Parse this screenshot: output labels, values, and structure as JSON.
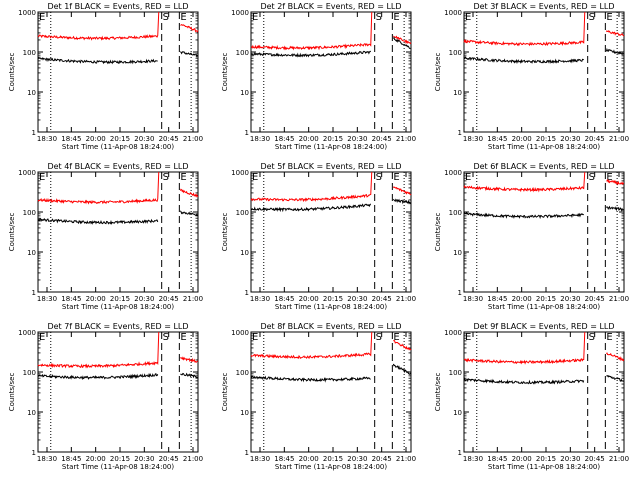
{
  "chart_data": [
    {
      "type": "line",
      "title": "Det 1f BLACK = Events, RED = LLD",
      "xlabel": "Start Time (11-Apr-08 18:24:00)",
      "ylabel": "Counts/sec",
      "yscale": "log",
      "ylim": [
        1,
        1000
      ],
      "xlim": [
        "18:24",
        "21:07"
      ],
      "x_ticks": [
        "18:30",
        "18:45",
        "20:00",
        "20:15",
        "20:30",
        "20:45",
        "21:00"
      ],
      "y_ticks": [
        "1",
        "10",
        "100",
        "1000"
      ],
      "markers": [
        {
          "label": "E",
          "time": "18:24",
          "style": "dotted"
        },
        {
          "label": "",
          "time": "18:37",
          "style": "dotted"
        },
        {
          "label": "S",
          "time": "20:30",
          "style": "dashed"
        },
        {
          "label": "E",
          "time": "20:48",
          "style": "dashed"
        },
        {
          "label": "",
          "time": "21:00",
          "style": "dotted"
        }
      ],
      "series": [
        {
          "color": "#ff0000",
          "segments": [
            {
              "start": "18:24",
              "end": "20:26",
              "start_value": 250,
              "end_value": 250,
              "peak": 1000
            },
            {
              "start": "20:49",
              "end": "21:07",
              "start_value": 500,
              "end_value": 330
            }
          ]
        },
        {
          "color": "#000000",
          "segments": [
            {
              "start": "18:24",
              "end": "20:26",
              "start_value": 68,
              "end_value": 60
            },
            {
              "start": "20:49",
              "end": "21:07",
              "start_value": 100,
              "end_value": 80
            }
          ]
        }
      ]
    },
    {
      "type": "line",
      "title": "Det 2f BLACK = Events, RED = LLD",
      "xlabel": "Start Time (11-Apr-08 18:24:00)",
      "ylabel": "Counts/sec",
      "yscale": "log",
      "ylim": [
        1,
        1000
      ],
      "xlim": [
        "18:24",
        "21:07"
      ],
      "x_ticks": [
        "18:30",
        "18:45",
        "20:00",
        "20:15",
        "20:30",
        "20:45",
        "21:00"
      ],
      "y_ticks": [
        "1",
        "10",
        "100",
        "1000"
      ],
      "markers": [
        {
          "label": "E",
          "time": "18:24",
          "style": "dotted"
        },
        {
          "label": "",
          "time": "18:37",
          "style": "dotted"
        },
        {
          "label": "S",
          "time": "20:30",
          "style": "dashed"
        },
        {
          "label": "E",
          "time": "20:48",
          "style": "dashed"
        },
        {
          "label": "",
          "time": "21:00",
          "style": "dotted"
        }
      ],
      "series": [
        {
          "color": "#ff0000",
          "segments": [
            {
              "start": "18:24",
              "end": "20:26",
              "start_value": 135,
              "end_value": 155,
              "peak": 1000
            },
            {
              "start": "20:49",
              "end": "21:07",
              "start_value": 250,
              "end_value": 160
            }
          ]
        },
        {
          "color": "#000000",
          "segments": [
            {
              "start": "18:24",
              "end": "20:26",
              "start_value": 90,
              "end_value": 100
            },
            {
              "start": "20:49",
              "end": "21:07",
              "start_value": 220,
              "end_value": 125
            }
          ]
        }
      ]
    },
    {
      "type": "line",
      "title": "Det 3f BLACK = Events, RED = LLD",
      "xlabel": "Start Time (11-Apr-08 18:24:00)",
      "ylabel": "Counts/sec",
      "yscale": "log",
      "ylim": [
        1,
        1000
      ],
      "xlim": [
        "18:24",
        "21:07"
      ],
      "x_ticks": [
        "18:30",
        "18:45",
        "20:00",
        "20:15",
        "20:30",
        "20:45",
        "21:00"
      ],
      "y_ticks": [
        "1",
        "10",
        "100",
        "1000"
      ],
      "markers": [
        {
          "label": "E",
          "time": "18:24",
          "style": "dotted"
        },
        {
          "label": "",
          "time": "18:37",
          "style": "dotted"
        },
        {
          "label": "S",
          "time": "20:30",
          "style": "dashed"
        },
        {
          "label": "E",
          "time": "20:48",
          "style": "dashed"
        },
        {
          "label": "",
          "time": "21:00",
          "style": "dotted"
        }
      ],
      "series": [
        {
          "color": "#ff0000",
          "segments": [
            {
              "start": "18:24",
              "end": "20:26",
              "start_value": 185,
              "end_value": 175,
              "peak": 1000
            },
            {
              "start": "20:49",
              "end": "21:07",
              "start_value": 330,
              "end_value": 260
            }
          ]
        },
        {
          "color": "#000000",
          "segments": [
            {
              "start": "18:24",
              "end": "20:26",
              "start_value": 70,
              "end_value": 62
            },
            {
              "start": "20:49",
              "end": "21:07",
              "start_value": 110,
              "end_value": 90
            }
          ]
        }
      ]
    },
    {
      "type": "line",
      "title": "Det 4f BLACK = Events, RED = LLD",
      "xlabel": "Start Time (11-Apr-08 18:24:00)",
      "ylabel": "Counts/sec",
      "yscale": "log",
      "ylim": [
        1,
        1000
      ],
      "xlim": [
        "18:24",
        "21:07"
      ],
      "x_ticks": [
        "18:30",
        "18:45",
        "20:00",
        "20:15",
        "20:30",
        "20:45",
        "21:00"
      ],
      "y_ticks": [
        "1",
        "10",
        "100",
        "1000"
      ],
      "markers": [
        {
          "label": "E",
          "time": "18:24",
          "style": "dotted"
        },
        {
          "label": "",
          "time": "18:37",
          "style": "dotted"
        },
        {
          "label": "S",
          "time": "20:30",
          "style": "dashed"
        },
        {
          "label": "E",
          "time": "20:48",
          "style": "dashed"
        },
        {
          "label": "",
          "time": "21:00",
          "style": "dotted"
        }
      ],
      "series": [
        {
          "color": "#ff0000",
          "segments": [
            {
              "start": "18:24",
              "end": "20:26",
              "start_value": 200,
              "end_value": 200,
              "peak": 1000
            },
            {
              "start": "20:49",
              "end": "21:07",
              "start_value": 350,
              "end_value": 250
            }
          ]
        },
        {
          "color": "#000000",
          "segments": [
            {
              "start": "18:24",
              "end": "20:26",
              "start_value": 65,
              "end_value": 60
            },
            {
              "start": "20:49",
              "end": "21:07",
              "start_value": 100,
              "end_value": 85
            }
          ]
        }
      ]
    },
    {
      "type": "line",
      "title": "Det 5f BLACK = Events, RED = LLD",
      "xlabel": "Start Time (11-Apr-08 18:24:00)",
      "ylabel": "Counts/sec",
      "yscale": "log",
      "ylim": [
        1,
        1000
      ],
      "xlim": [
        "18:24",
        "21:07"
      ],
      "x_ticks": [
        "18:30",
        "18:45",
        "20:00",
        "20:15",
        "20:30",
        "20:45",
        "21:00"
      ],
      "y_ticks": [
        "1",
        "10",
        "100",
        "1000"
      ],
      "markers": [
        {
          "label": "E",
          "time": "18:24",
          "style": "dotted"
        },
        {
          "label": "",
          "time": "18:37",
          "style": "dotted"
        },
        {
          "label": "S",
          "time": "20:30",
          "style": "dashed"
        },
        {
          "label": "E",
          "time": "20:48",
          "style": "dashed"
        },
        {
          "label": "",
          "time": "21:00",
          "style": "dotted"
        }
      ],
      "series": [
        {
          "color": "#ff0000",
          "segments": [
            {
              "start": "18:24",
              "end": "20:26",
              "start_value": 210,
              "end_value": 260,
              "peak": 1000
            },
            {
              "start": "20:49",
              "end": "21:07",
              "start_value": 420,
              "end_value": 280
            }
          ]
        },
        {
          "color": "#000000",
          "segments": [
            {
              "start": "18:24",
              "end": "20:26",
              "start_value": 120,
              "end_value": 150
            },
            {
              "start": "20:49",
              "end": "21:07",
              "start_value": 200,
              "end_value": 170
            }
          ]
        }
      ]
    },
    {
      "type": "line",
      "title": "Det 6f BLACK = Events, RED = LLD",
      "xlabel": "Start Time (11-Apr-08 18:24:00)",
      "ylabel": "Counts/sec",
      "yscale": "log",
      "ylim": [
        1,
        1000
      ],
      "xlim": [
        "18:24",
        "21:07"
      ],
      "x_ticks": [
        "18:30",
        "18:45",
        "20:00",
        "20:15",
        "20:30",
        "20:45",
        "21:00"
      ],
      "y_ticks": [
        "1",
        "10",
        "100",
        "1000"
      ],
      "markers": [
        {
          "label": "E",
          "time": "18:24",
          "style": "dotted"
        },
        {
          "label": "",
          "time": "18:37",
          "style": "dotted"
        },
        {
          "label": "S",
          "time": "20:30",
          "style": "dashed"
        },
        {
          "label": "E",
          "time": "20:48",
          "style": "dashed"
        },
        {
          "label": "",
          "time": "21:00",
          "style": "dotted"
        }
      ],
      "series": [
        {
          "color": "#ff0000",
          "segments": [
            {
              "start": "18:24",
              "end": "20:26",
              "start_value": 420,
              "end_value": 400,
              "peak": 1000
            },
            {
              "start": "20:49",
              "end": "21:07",
              "start_value": 600,
              "end_value": 500
            }
          ]
        },
        {
          "color": "#000000",
          "segments": [
            {
              "start": "18:24",
              "end": "20:26",
              "start_value": 90,
              "end_value": 85
            },
            {
              "start": "20:49",
              "end": "21:07",
              "start_value": 130,
              "end_value": 115
            }
          ]
        }
      ]
    },
    {
      "type": "line",
      "title": "Det 7f BLACK = Events, RED = LLD",
      "xlabel": "Start Time (11-Apr-08 18:24:00)",
      "ylabel": "Counts/sec",
      "yscale": "log",
      "ylim": [
        1,
        1000
      ],
      "xlim": [
        "18:24",
        "21:07"
      ],
      "x_ticks": [
        "18:30",
        "18:45",
        "20:00",
        "20:15",
        "20:30",
        "20:45",
        "21:00"
      ],
      "y_ticks": [
        "1",
        "10",
        "100",
        "1000"
      ],
      "markers": [
        {
          "label": "E",
          "time": "18:24",
          "style": "dotted"
        },
        {
          "label": "",
          "time": "18:37",
          "style": "dotted"
        },
        {
          "label": "S",
          "time": "20:30",
          "style": "dashed"
        },
        {
          "label": "E",
          "time": "20:48",
          "style": "dashed"
        },
        {
          "label": "",
          "time": "21:00",
          "style": "dotted"
        }
      ],
      "series": [
        {
          "color": "#ff0000",
          "segments": [
            {
              "start": "18:24",
              "end": "20:26",
              "start_value": 150,
              "end_value": 170,
              "peak": 1000
            },
            {
              "start": "20:49",
              "end": "21:07",
              "start_value": 230,
              "end_value": 180
            }
          ]
        },
        {
          "color": "#000000",
          "segments": [
            {
              "start": "18:24",
              "end": "20:26",
              "start_value": 80,
              "end_value": 85
            },
            {
              "start": "20:49",
              "end": "21:07",
              "start_value": 90,
              "end_value": 75
            }
          ]
        }
      ]
    },
    {
      "type": "line",
      "title": "Det 8f BLACK = Events, RED = LLD",
      "xlabel": "Start Time (11-Apr-08 18:24:00)",
      "ylabel": "Counts/sec",
      "yscale": "log",
      "ylim": [
        1,
        1000
      ],
      "xlim": [
        "18:24",
        "21:07"
      ],
      "x_ticks": [
        "18:30",
        "18:45",
        "20:00",
        "20:15",
        "20:30",
        "20:45",
        "21:00"
      ],
      "y_ticks": [
        "1",
        "10",
        "100",
        "1000"
      ],
      "markers": [
        {
          "label": "E",
          "time": "18:24",
          "style": "dotted"
        },
        {
          "label": "",
          "time": "18:37",
          "style": "dotted"
        },
        {
          "label": "S",
          "time": "20:30",
          "style": "dashed"
        },
        {
          "label": "E",
          "time": "20:48",
          "style": "dashed"
        },
        {
          "label": "",
          "time": "21:00",
          "style": "dotted"
        }
      ],
      "series": [
        {
          "color": "#ff0000",
          "segments": [
            {
              "start": "18:24",
              "end": "20:26",
              "start_value": 260,
              "end_value": 280,
              "peak": 1000
            },
            {
              "start": "20:49",
              "end": "21:07",
              "start_value": 600,
              "end_value": 350
            }
          ]
        },
        {
          "color": "#000000",
          "segments": [
            {
              "start": "18:24",
              "end": "20:26",
              "start_value": 75,
              "end_value": 70
            },
            {
              "start": "20:49",
              "end": "21:07",
              "start_value": 150,
              "end_value": 90
            }
          ]
        }
      ]
    },
    {
      "type": "line",
      "title": "Det 9f BLACK = Events, RED = LLD",
      "xlabel": "Start Time (11-Apr-08 18:24:00)",
      "ylabel": "Counts/sec",
      "yscale": "log",
      "ylim": [
        1,
        1000
      ],
      "xlim": [
        "18:24",
        "21:07"
      ],
      "x_ticks": [
        "18:30",
        "18:45",
        "20:00",
        "20:15",
        "20:30",
        "20:45",
        "21:00"
      ],
      "y_ticks": [
        "1",
        "10",
        "100",
        "1000"
      ],
      "markers": [
        {
          "label": "E",
          "time": "18:24",
          "style": "dotted"
        },
        {
          "label": "",
          "time": "18:37",
          "style": "dotted"
        },
        {
          "label": "S",
          "time": "20:30",
          "style": "dashed"
        },
        {
          "label": "E",
          "time": "20:48",
          "style": "dashed"
        },
        {
          "label": "",
          "time": "21:00",
          "style": "dotted"
        }
      ],
      "series": [
        {
          "color": "#ff0000",
          "segments": [
            {
              "start": "18:24",
              "end": "20:26",
              "start_value": 200,
              "end_value": 200,
              "peak": 1000
            },
            {
              "start": "20:49",
              "end": "21:07",
              "start_value": 300,
              "end_value": 200
            }
          ]
        },
        {
          "color": "#000000",
          "segments": [
            {
              "start": "18:24",
              "end": "20:26",
              "start_value": 65,
              "end_value": 60
            },
            {
              "start": "20:49",
              "end": "21:07",
              "start_value": 80,
              "end_value": 60
            }
          ]
        }
      ]
    }
  ]
}
